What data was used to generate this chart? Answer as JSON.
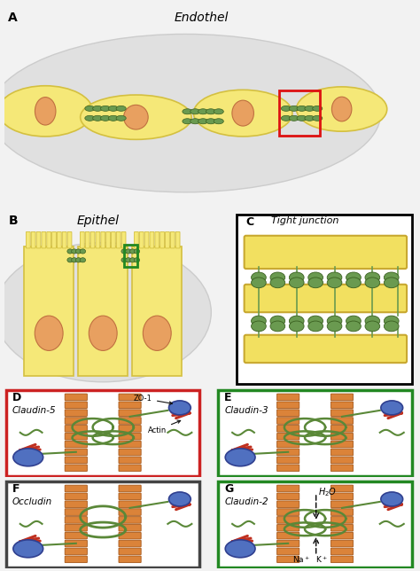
{
  "bg_color": "#f2f2f2",
  "title_A": "Endothel",
  "title_B": "Epithel",
  "title_C": "Tight junction",
  "name_D": "Claudin-5",
  "name_E": "Claudin-3",
  "name_F": "Occludin",
  "name_G": "Claudin-2",
  "border_D": "#cc2222",
  "border_E": "#228822",
  "border_F": "#444444",
  "border_G": "#228822",
  "cell_yellow": "#f5e878",
  "cell_yellow_edge": "#d4c040",
  "nucleus_fill": "#e8a060",
  "tj_green": "#6a9a50",
  "membrane_orange": "#d87828",
  "loop_green": "#5a8838",
  "ball_blue": "#5070c0",
  "actin_red": "#c03020",
  "gray_bg": "#e0e0e0"
}
